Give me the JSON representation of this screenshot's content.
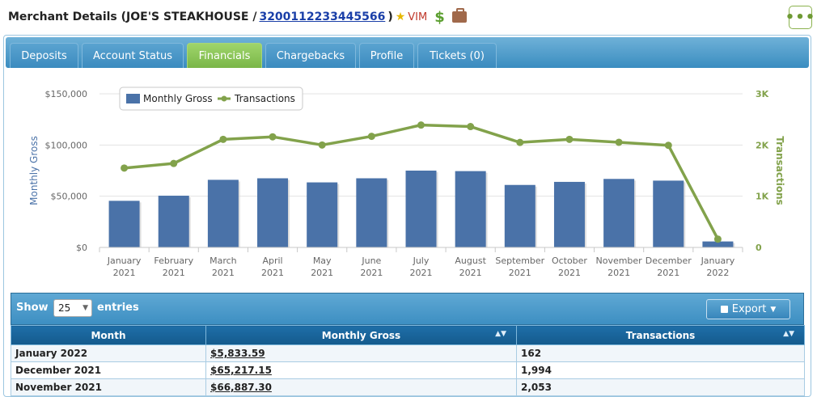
{
  "header": {
    "title_prefix": "Merchant Details (JOE'S STEAKHOUSE / ",
    "merchant_id": "3200112233445566",
    "title_suffix": ")",
    "vim_label": "VIM",
    "more_label": "•••"
  },
  "tabs": [
    {
      "label": "Deposits",
      "active": false
    },
    {
      "label": "Account Status",
      "active": false
    },
    {
      "label": "Financials",
      "active": true
    },
    {
      "label": "Chargebacks",
      "active": false
    },
    {
      "label": "Profile",
      "active": false
    },
    {
      "label": "Tickets (0)",
      "active": false
    }
  ],
  "chart_data": {
    "type": "bar+line",
    "categories": [
      [
        "January",
        "2021"
      ],
      [
        "February",
        "2021"
      ],
      [
        "March",
        "2021"
      ],
      [
        "April",
        "2021"
      ],
      [
        "May",
        "2021"
      ],
      [
        "June",
        "2021"
      ],
      [
        "July",
        "2021"
      ],
      [
        "August",
        "2021"
      ],
      [
        "September",
        "2021"
      ],
      [
        "October",
        "2021"
      ],
      [
        "November",
        "2021"
      ],
      [
        "December",
        "2021"
      ],
      [
        "January",
        "2022"
      ]
    ],
    "series": [
      {
        "name": "Monthly Gross",
        "type": "bar",
        "axis": "left",
        "color": "#4a72a8",
        "values": [
          45500,
          50500,
          66000,
          67500,
          63500,
          67500,
          75000,
          74500,
          61000,
          64000,
          66887.3,
          65217.15,
          5833.59
        ]
      },
      {
        "name": "Transactions",
        "type": "line",
        "axis": "right",
        "color": "#82a24b",
        "values": [
          1550,
          1640,
          2110,
          2160,
          2000,
          2170,
          2390,
          2360,
          2050,
          2110,
          2053,
          1994,
          162
        ]
      }
    ],
    "ylabel": "Monthly Gross",
    "y2label": "Transactions",
    "yticks": [
      "$0",
      "$50,000",
      "$100,000",
      "$150,000"
    ],
    "y2ticks": [
      "0",
      "1K",
      "2K",
      "3K"
    ],
    "ylim": [
      0,
      150000
    ],
    "y2lim": [
      0,
      3000
    ],
    "legend": "top-left"
  },
  "table": {
    "show_label": "Show",
    "page_size": "25",
    "entries_label": "entries",
    "export_label": "Export",
    "columns": [
      "Month",
      "Monthly Gross",
      "Transactions"
    ],
    "rows": [
      {
        "month": "January 2022",
        "gross": "$5,833.59",
        "transactions": "162"
      },
      {
        "month": "December 2021",
        "gross": "$65,217.15",
        "transactions": "1,994"
      },
      {
        "month": "November 2021",
        "gross": "$66,887.30",
        "transactions": "2,053"
      }
    ]
  },
  "colors": {
    "tab_active": "#7ab648",
    "tab_bar": "#3a8dc0",
    "bar": "#4a72a8",
    "line": "#82a24b"
  }
}
